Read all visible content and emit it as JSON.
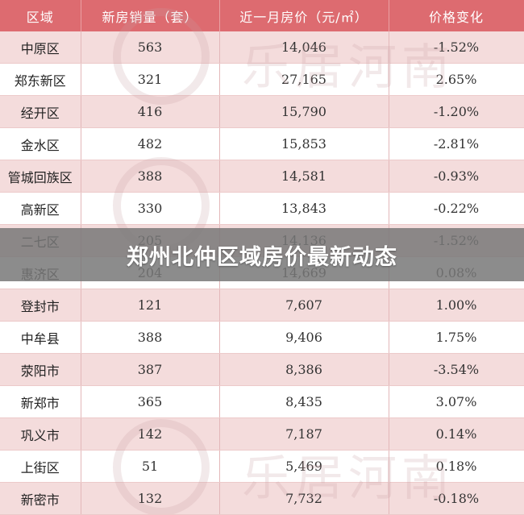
{
  "table": {
    "headers": [
      "区域",
      "新房销量（套）",
      "近一月房价（元/㎡）",
      "价格变化"
    ],
    "rows": [
      [
        "中原区",
        "563",
        "14,046",
        "-1.52%"
      ],
      [
        "郑东新区",
        "321",
        "27,165",
        "2.65%"
      ],
      [
        "经开区",
        "416",
        "15,790",
        "-1.20%"
      ],
      [
        "金水区",
        "482",
        "15,853",
        "-2.81%"
      ],
      [
        "管城回族区",
        "388",
        "14,581",
        "-0.93%"
      ],
      [
        "高新区",
        "330",
        "13,843",
        "-0.22%"
      ],
      [
        "二七区",
        "205",
        "14,136",
        "-1.52%"
      ],
      [
        "惠济区",
        "204",
        "14,669",
        "0.08%"
      ],
      [
        "登封市",
        "121",
        "7,607",
        "1.00%"
      ],
      [
        "中牟县",
        "388",
        "9,406",
        "1.75%"
      ],
      [
        "荥阳市",
        "387",
        "8,386",
        "-3.54%"
      ],
      [
        "新郑市",
        "365",
        "8,435",
        "3.07%"
      ],
      [
        "巩义市",
        "142",
        "7,187",
        "0.14%"
      ],
      [
        "上街区",
        "51",
        "5,469",
        "0.18%"
      ],
      [
        "新密市",
        "132",
        "7,732",
        "-0.18%"
      ]
    ]
  },
  "banner": {
    "title": "郑州北仲区域房价最新动态"
  },
  "watermark": {
    "text": "乐居河南"
  },
  "colors": {
    "header": "#dd6b70",
    "row_tint": "#f4dcdc",
    "banner": "#787878"
  }
}
